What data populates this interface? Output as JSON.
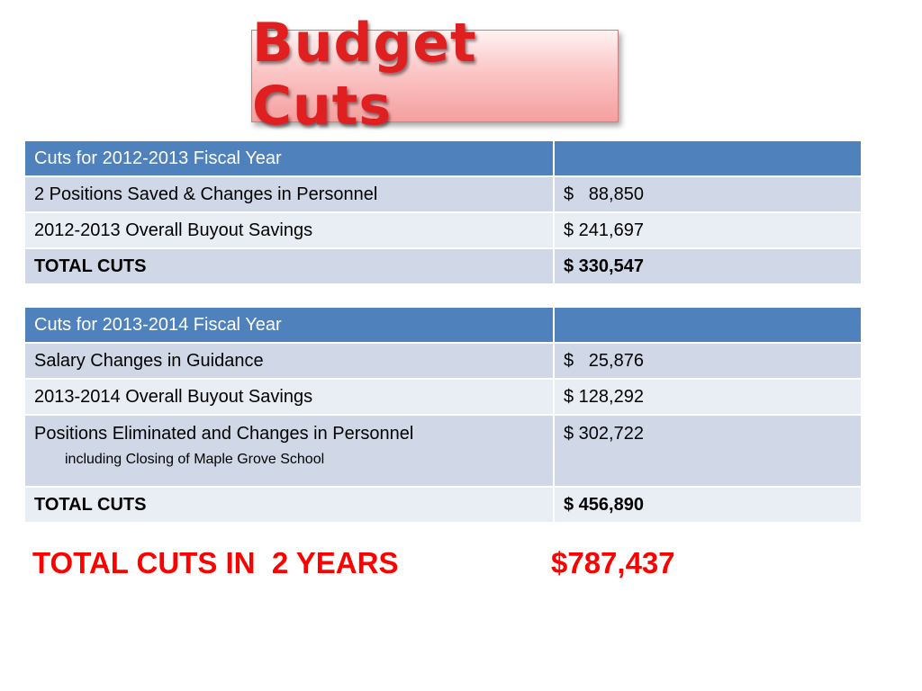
{
  "title": "Budget Cuts",
  "table_2012": {
    "header": "Cuts for 2012-2013 Fiscal Year",
    "header_value": "",
    "rows": [
      {
        "label": "2 Positions Saved & Changes in Personnel",
        "value": "$   88,850"
      },
      {
        "label": "2012-2013 Overall Buyout Savings",
        "value": "$ 241,697"
      }
    ],
    "total_label": "TOTAL CUTS",
    "total_value": "$ 330,547"
  },
  "table_2013": {
    "header": "Cuts for 2013-2014 Fiscal Year",
    "header_value": "",
    "rows": [
      {
        "label": "Salary Changes in Guidance",
        "value": "$   25,876"
      },
      {
        "label": "2013-2014 Overall Buyout Savings",
        "value": "$ 128,292"
      },
      {
        "label": "Positions Eliminated and Changes in Personnel",
        "sublabel": "including Closing of Maple Grove School",
        "value": "$ 302,722"
      }
    ],
    "total_label": "TOTAL CUTS",
    "total_value": "$ 456,890"
  },
  "grand_total": {
    "label": "TOTAL CUTS IN  2 YEARS",
    "value": "$787,437"
  },
  "colors": {
    "title_text": "#e02020",
    "header_bg": "#4f81bd",
    "row_dark": "#d0d8e8",
    "row_light": "#e9edf4",
    "grand_total_text": "#ff0000"
  }
}
